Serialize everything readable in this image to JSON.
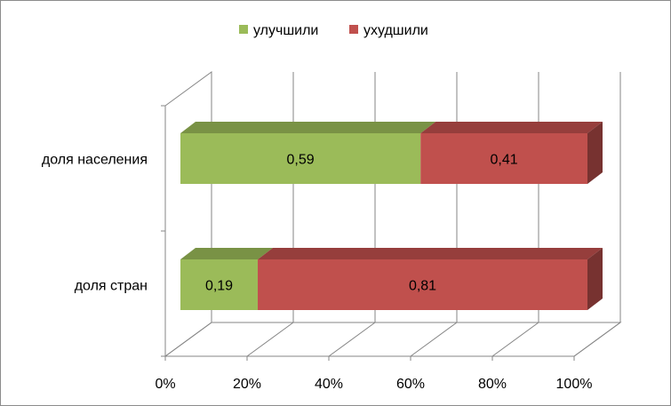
{
  "chart_data": {
    "type": "bar",
    "orientation": "horizontal",
    "stacked": "percent",
    "style": "3d",
    "categories": [
      "доля населения",
      "доля стран"
    ],
    "series": [
      {
        "name": "улучшили",
        "values": [
          0.59,
          0.19
        ],
        "labels": [
          "0,59",
          "0,19"
        ],
        "color": "#9bbb59"
      },
      {
        "name": "ухудшили",
        "values": [
          0.41,
          0.81
        ],
        "labels": [
          "0,41",
          "0,81"
        ],
        "color": "#c0504d"
      }
    ],
    "xticks": [
      "0%",
      "20%",
      "40%",
      "60%",
      "80%",
      "100%"
    ],
    "xlim": [
      0,
      1
    ],
    "grid": true,
    "legend": "top"
  }
}
